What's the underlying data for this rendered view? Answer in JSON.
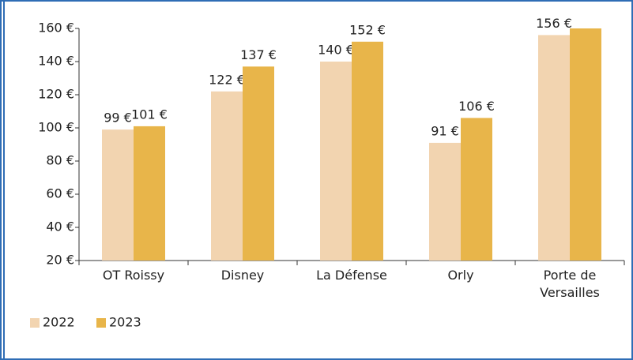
{
  "chart_data": {
    "type": "bar",
    "categories": [
      "OT Roissy",
      "Disney",
      "La Défense",
      "Orly",
      "Porte de Versailles"
    ],
    "series": [
      {
        "name": "2022",
        "color": "#f2d4b0",
        "values": [
          99,
          122,
          140,
          91,
          156
        ],
        "value_labels": [
          "99 €",
          "122 €",
          "140 €",
          "91 €",
          "156 €"
        ]
      },
      {
        "name": "2023",
        "color": "#e8b54a",
        "values": [
          101,
          137,
          152,
          106,
          160
        ],
        "value_labels": [
          "101 €",
          "137 €",
          "152 €",
          "106 €",
          null
        ]
      }
    ],
    "ylim": [
      20,
      160
    ],
    "yticks": [
      {
        "value": 20,
        "label": "20 €"
      },
      {
        "value": 40,
        "label": "40 €"
      },
      {
        "value": 60,
        "label": "60 €"
      },
      {
        "value": 80,
        "label": "80 €"
      },
      {
        "value": 100,
        "label": "100 €"
      },
      {
        "value": 120,
        "label": "120 €"
      },
      {
        "value": 140,
        "label": "140 €"
      },
      {
        "value": 160,
        "label": "160 €"
      }
    ],
    "legend": "bottom-left",
    "grid": false
  }
}
